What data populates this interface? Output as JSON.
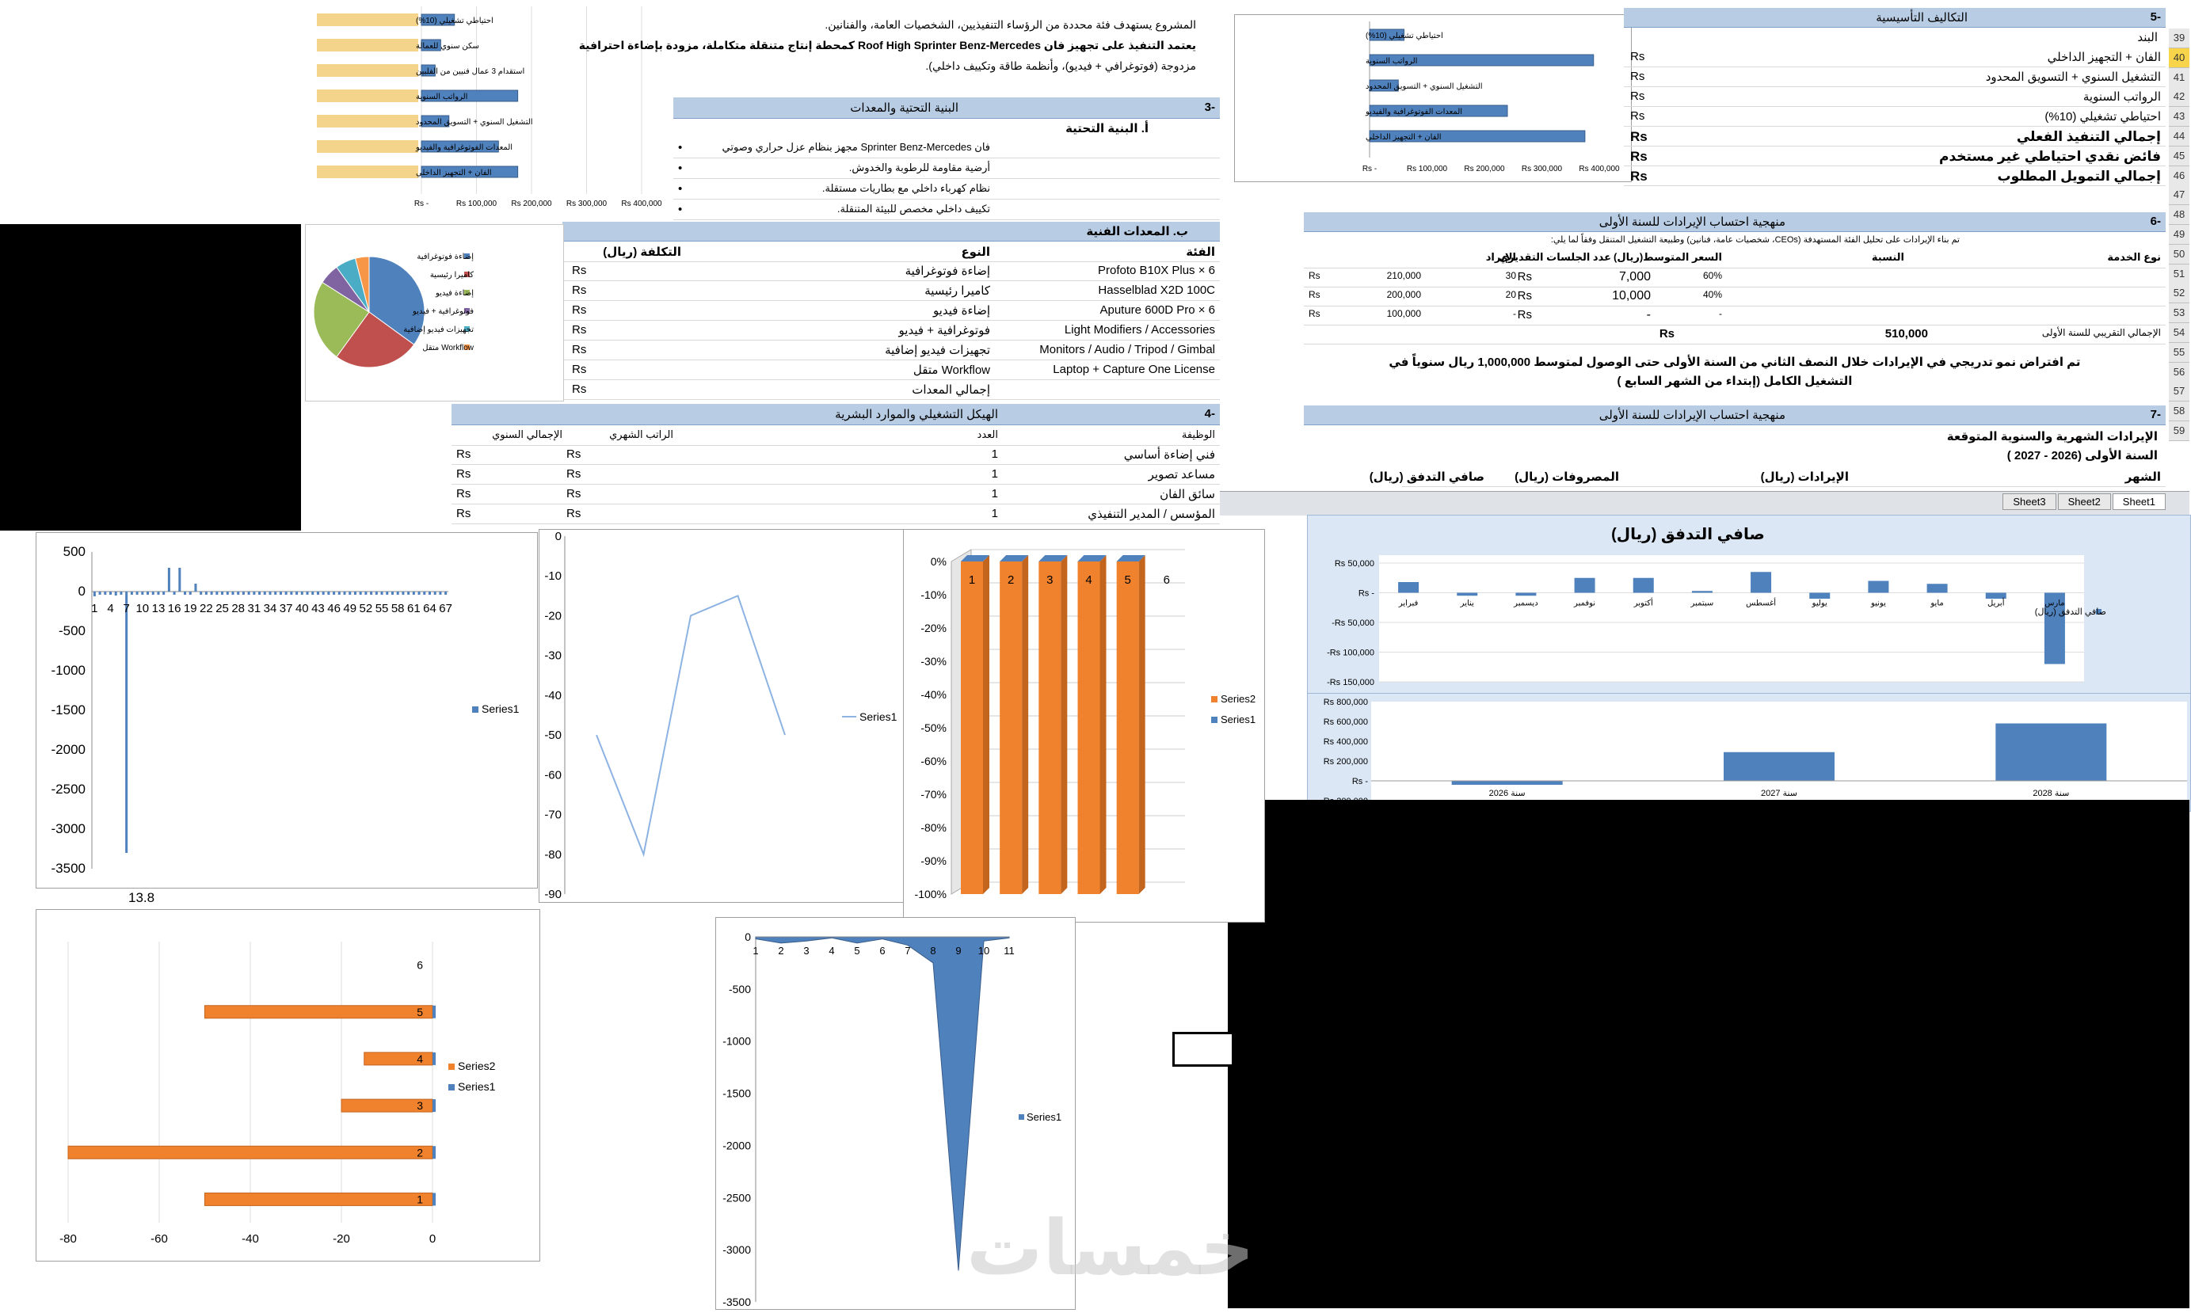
{
  "top_left_chart": {
    "categories": [
      "احتياطي تشغيلي (10%)",
      "سكن سنوي للعمالة",
      "استقدام 3 عمال فنيين من الفلبين",
      "الرواتب السنوية",
      "التشغيل السنوي + التسويق المحدود",
      "المعدات الفوتوغرافية والفيديو",
      "الفان + التجهيز الداخلي"
    ],
    "values": [
      60000,
      35000,
      25000,
      175000,
      50000,
      140000,
      175000
    ],
    "ticks": [
      "Rs -",
      "Rs 100,000",
      "Rs 200,000",
      "Rs 300,000",
      "Rs 400,000"
    ],
    "xmax": 400000
  },
  "intro": {
    "line1": "المشروع يستهدف فئة محددة من الرؤساء التنفيذيين، الشخصيات العامة، والفنانين.",
    "line2": "يعتمد التنفيذ على تجهيز فان Roof High Sprinter Benz-Mercedes كمحطة إنتاج متنقلة متكاملة، مزودة بإضاءة احترافية",
    "line3": "مزدوجة (فوتوغرافي + فيديو)، وأنظمة طاقة وتكييف داخلي)."
  },
  "section3": {
    "title": "البنية التحتية والمعدات",
    "num": "-3",
    "sub_a": "أ. البنية التحتية",
    "items": [
      "فان Sprinter Benz-Mercedes مجهز بنظام عزل حراري وصوتي",
      "أرضية مقاومة للرطوبة والخدوش.",
      "نظام كهرباء داخلي مع بطاريات مستقلة.",
      "تكييف داخلي مخصص للبيئة المتنقلة."
    ],
    "bullet": "•",
    "sub_b": "ب. المعدات الفنية",
    "col_category": "الفئة",
    "col_type": "النوع",
    "col_cost": "التكلفة (ريال)",
    "rows": [
      {
        "cat": "Profoto B10X Plus × 6",
        "type": "إضاءة فوتوغرافية",
        "cost": "Rs"
      },
      {
        "cat": "Hasselblad X2D 100C",
        "type": "كاميرا رئيسية",
        "cost": "Rs"
      },
      {
        "cat": "Aputure 600D Pro × 6",
        "type": "إضاءة فيديو",
        "cost": "Rs"
      },
      {
        "cat": "Light Modifiers / Accessories",
        "type": "فوتوغرافية + فيديو",
        "cost": "Rs"
      },
      {
        "cat": "Monitors / Audio / Tripod / Gimbal",
        "type": "تجهيزات فيديو إضافية",
        "cost": "Rs"
      },
      {
        "cat": "Laptop + Capture One License",
        "type": "Workflow متقل",
        "cost": "Rs"
      },
      {
        "cat": "",
        "type": "إجمالي المعدات",
        "cost": "Rs"
      }
    ]
  },
  "pie_chart": {
    "legend": [
      "إضاءة فوتوغرافية",
      "كاميرا رئيسية",
      "إضاءة فيديو",
      "فوتوغرافية + فيديو",
      "تجهيزات فيديو إضافية",
      "Workflow متقل"
    ],
    "values": [
      35,
      25,
      24,
      6,
      6,
      4
    ],
    "colors": [
      "#4f81bd",
      "#c0504d",
      "#9bbb59",
      "#8064a2",
      "#4bacc6",
      "#f79646"
    ]
  },
  "section4": {
    "num": "-4",
    "title": "الهيكل التشغيلي والموارد البشرية",
    "col_job": "الوظيفة",
    "col_count": "العدد",
    "col_monthly": "الراتب الشهري",
    "col_annual": "الإجمالي السنوي",
    "rows": [
      {
        "job": "فني إضاءة أساسي",
        "count": "1",
        "m": "Rs",
        "a": "Rs"
      },
      {
        "job": "مساعد تصوير",
        "count": "1",
        "m": "Rs",
        "a": "Rs"
      },
      {
        "job": "سائق الفان",
        "count": "1",
        "m": "Rs",
        "a": "Rs"
      },
      {
        "job": "المؤسس / المدير التنفيذي",
        "count": "1",
        "m": "Rs",
        "a": "Rs"
      }
    ]
  },
  "right_sheet": {
    "section5_num": "-5",
    "section5_title": "التكاليف التأسيسية",
    "col_item": "البند",
    "items": [
      "الفان + التجهيز الداخلي",
      "التشغيل السنوي + التسويق المحدود",
      "الرواتب السنوية",
      "احتياطي تشغيلي (10%)",
      "إجمالي التنفيذ الفعلي",
      "فائض نقدي احتياطي غير مستخدم",
      "إجمالي التمويل المطلوب"
    ],
    "currency": "Rs",
    "row_numbers": [
      "39",
      "40",
      "41",
      "42",
      "43",
      "44",
      "45",
      "46",
      "47",
      "48",
      "49",
      "50",
      "51",
      "52",
      "53",
      "54",
      "55",
      "56",
      "57",
      "58",
      "59"
    ],
    "section6_num": "-6",
    "section6_title": "منهجية احتساب الإيرادات للسنة الأولى",
    "section6_note": "تم بناء الإيرادات على تحليل الفئة المستهدفة (CEOs، شخصيات عامة، فنانين) وطبيعة التشغيل المتنقل وفقاً لما يلي:",
    "rev_cols": [
      "نوع الخدمة",
      "النسبة",
      "السعر المتوسط(ريال)",
      "عدد الجلسات التقديري",
      "الإيراد"
    ],
    "rev_rows": [
      {
        "pct": "60%",
        "price": "7,000",
        "sessions": "30",
        "rev": "210,000"
      },
      {
        "pct": "40%",
        "price": "10,000",
        "sessions": "20",
        "rev": "200,000"
      },
      {
        "pct": "-",
        "price": "-",
        "sessions": "-",
        "rev": "100,000"
      }
    ],
    "total_label": "الإجمالي التقريبي للسنة الأولى",
    "total_value": "510,000",
    "growth_line1": "تم افتراض نمو تدريجي في الإيرادات خلال النصف الثاني من السنة الأولى حتى الوصول لمتوسط 1,000,000 ريال سنوياً في",
    "growth_line2": "التشغيل الكامل (إبتداء من الشهر السابع )",
    "section7_num": "-7",
    "section7_title": "منهجية احتساب الإيرادات للسنة الأولى",
    "monthly_title": "الإيرادات الشهرية والسنوية المتوقعة",
    "year_label": "السنة الأولى (2026 - 2027 )",
    "cf_cols": [
      "الشهر",
      "الإيرادات (ريال)",
      "المصروفات (ريال)",
      "صافي التدفق (ريال)"
    ],
    "sheet_tabs": [
      "Sheet3",
      "Sheet2",
      "Sheet1"
    ]
  },
  "inset_chart": {
    "categories": [
      "احتياطي تشغيلي (10%)",
      "الرواتب السنوية",
      "التشغيل السنوي + التسويق المحدود",
      "المعدات الفوتوغرافية والفيديو",
      "الفان + التجهيز الداخلي"
    ],
    "values": [
      60000,
      390000,
      50000,
      240000,
      375000
    ],
    "ticks": [
      "Rs -",
      "Rs 100,000",
      "Rs 200,000",
      "Rs 300,000",
      "Rs 400,000"
    ],
    "xmax": 400000
  },
  "netflow_chart": {
    "title": "صافي التدفق (ريال)",
    "months": [
      "مارس",
      "أبريل",
      "مايو",
      "يونيو",
      "يوليو",
      "أغسطس",
      "سبتمبر",
      "أكتوبر",
      "نوفمبر",
      "ديسمبر",
      "يناير",
      "فبراير"
    ],
    "values": [
      -120000,
      -10000,
      15000,
      20000,
      -10000,
      35000,
      3000,
      25000,
      25000,
      -5000,
      -5000,
      18000
    ],
    "ticks": [
      "Rs 50,000",
      "Rs -",
      "-Rs 50,000",
      "-Rs 100,000",
      "-Rs 150,000"
    ],
    "legend": "صافي التدفق (ريال)"
  },
  "annual_chart": {
    "years": [
      "سنة 2026",
      "سنة 2027",
      "سنة 2028"
    ],
    "values": [
      -40000,
      290000,
      580000
    ],
    "ticks": [
      "Rs 800,000",
      "Rs 600,000",
      "Rs 400,000",
      "Rs 200,000",
      "Rs -",
      "-Rs 200,000"
    ]
  },
  "chart_data": [
    {
      "type": "bar",
      "x": [
        1,
        2,
        3,
        4,
        5,
        6,
        7,
        8,
        9,
        10,
        11,
        12,
        13,
        14,
        15,
        16,
        17,
        18,
        19,
        20,
        21,
        22,
        23,
        24,
        25,
        26,
        27,
        28,
        29,
        30,
        31,
        32,
        33,
        34,
        35,
        36,
        37,
        38,
        39,
        40,
        41,
        42,
        43,
        44,
        45,
        46,
        47,
        48,
        49,
        50,
        51,
        52,
        53,
        54,
        55,
        56,
        57,
        58,
        59,
        60,
        61,
        62,
        63,
        64,
        65,
        66,
        67
      ],
      "series": [
        {
          "name": "Series1",
          "values": [
            -60,
            -40,
            -30,
            -20,
            -50,
            -30,
            -3300,
            -10,
            -5,
            -5,
            0,
            0,
            0,
            0,
            300,
            0,
            300,
            0,
            0,
            100,
            0,
            0,
            0,
            0,
            0,
            0,
            0,
            0,
            0,
            0,
            0,
            0,
            0,
            0,
            0,
            0,
            0,
            0,
            0,
            0,
            0,
            0,
            0,
            0,
            0,
            0,
            0,
            0,
            0,
            0,
            0,
            0,
            0,
            0,
            0,
            0,
            0,
            0,
            0,
            0,
            0,
            0,
            0,
            0,
            0,
            0,
            0
          ]
        }
      ],
      "tick_labels": [
        "1",
        "4",
        "7",
        "10",
        "13",
        "16",
        "19",
        "22",
        "25",
        "28",
        "31",
        "34",
        "37",
        "40",
        "43",
        "46",
        "49",
        "52",
        "55",
        "58",
        "61",
        "64",
        "67"
      ],
      "y_ticks": [
        "500",
        "0",
        "-500",
        "-1000",
        "-1500",
        "-2000",
        "-2500",
        "-3000",
        "-3500"
      ],
      "ylim": [
        -3500,
        500
      ],
      "below_label": "13.8"
    },
    {
      "type": "line",
      "x": [
        1,
        2,
        3,
        4,
        5
      ],
      "series": [
        {
          "name": "Series1",
          "values": [
            -50,
            -80,
            -20,
            -15,
            -50
          ]
        }
      ],
      "y_ticks": [
        "0",
        "-10",
        "-20",
        "-30",
        "-40",
        "-50",
        "-60",
        "-70",
        "-80",
        "-90"
      ],
      "ylim": [
        -90,
        0
      ]
    },
    {
      "type": "bar",
      "categories": [
        "1",
        "2",
        "3",
        "4",
        "5",
        "6"
      ],
      "series": [
        {
          "name": "Series2",
          "values": [
            -100,
            -100,
            -100,
            -100,
            -100,
            0
          ]
        },
        {
          "name": "Series1",
          "values": [
            0,
            0,
            0,
            0,
            0,
            0
          ]
        }
      ],
      "y_ticks": [
        "0%",
        "-10%",
        "-20%",
        "-30%",
        "-40%",
        "-50%",
        "-60%",
        "-70%",
        "-80%",
        "-90%",
        "-100%"
      ],
      "ylim": [
        -100,
        0
      ]
    },
    {
      "type": "bar",
      "categories": [
        "1",
        "2",
        "3",
        "4",
        "5",
        "6"
      ],
      "series": [
        {
          "name": "Series2",
          "values": [
            -50,
            -80,
            -20,
            -15,
            -50,
            0
          ]
        },
        {
          "name": "Series1",
          "values": [
            -1,
            -1,
            -1,
            -1,
            -1,
            0
          ]
        }
      ],
      "x_ticks": [
        "-80",
        "-60",
        "-40",
        "-20",
        "0"
      ],
      "xlim": [
        -80,
        0
      ]
    },
    {
      "type": "area",
      "x": [
        1,
        2,
        3,
        4,
        5,
        6,
        7,
        8,
        9,
        10,
        11
      ],
      "series": [
        {
          "name": "Series1",
          "values": [
            -20,
            -60,
            -40,
            -10,
            -60,
            -20,
            -80,
            -250,
            -3200,
            -40,
            -10
          ]
        }
      ],
      "x_ticks": [
        "1",
        "2",
        "3",
        "4",
        "5",
        "6",
        "7",
        "8",
        "9",
        "10",
        "11"
      ],
      "y_ticks": [
        "0",
        "-500",
        "-1000",
        "-1500",
        "-2000",
        "-2500",
        "-3000",
        "-3500"
      ],
      "ylim": [
        -3500,
        0
      ]
    }
  ],
  "watermark": "خمسات"
}
